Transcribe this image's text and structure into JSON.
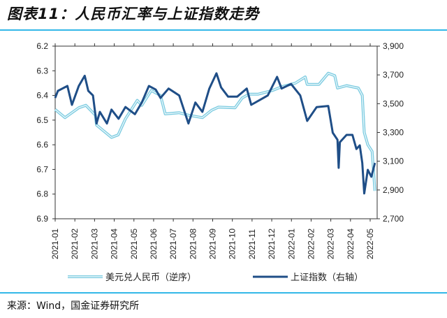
{
  "title": "图表11：人民币汇率与上证指数走势",
  "source": "来源：Wind，国金证券研究所",
  "colors": {
    "usdcny": "#7ccbe0",
    "sh_index": "#1f4e87",
    "rule": "#33b8e8"
  },
  "chart_data": {
    "type": "line",
    "title": "人民币汇率与上证指数走势",
    "x_unit": "months since 2021-01",
    "x_tick_labels": [
      "2021-01",
      "2021-02",
      "2021-03",
      "2021-04",
      "2021-05",
      "2021-06",
      "2021-07",
      "2021-08",
      "2021-09",
      "2021-10",
      "2021-11",
      "2021-12",
      "2022-01",
      "2022-02",
      "2022-03",
      "2022-04",
      "2022-05"
    ],
    "left_axis": {
      "ylim": [
        6.2,
        6.9
      ],
      "inverted": true,
      "ticks": [
        "6.2",
        "6.3",
        "6.4",
        "6.5",
        "6.6",
        "6.7",
        "6.8",
        "6.9"
      ]
    },
    "right_axis": {
      "ylim": [
        2700,
        3900
      ],
      "ticks": [
        "3,900",
        "3,700",
        "3,500",
        "3,300",
        "3,100",
        "2,900",
        "2,700"
      ]
    },
    "legend_position": "bottom",
    "series": [
      {
        "name": "美元兑人民币（逆序）",
        "axis": "left",
        "x": [
          0,
          0.5,
          1.2,
          1.56,
          2.04,
          2.1,
          2.86,
          3.2,
          3.57,
          4.17,
          4.4,
          4.88,
          5.35,
          5.59,
          6.3,
          6.77,
          7.48,
          7.95,
          8.3,
          9.14,
          9.5,
          9.85,
          10.3,
          11.03,
          11.5,
          12.2,
          12.7,
          12.8,
          13.4,
          13.87,
          14.2,
          14.34,
          14.8,
          15.4,
          15.6,
          15.7,
          15.88,
          16.1,
          16.24
        ],
        "y": [
          6.457,
          6.49,
          6.45,
          6.44,
          6.48,
          6.52,
          6.57,
          6.56,
          6.495,
          6.42,
          6.44,
          6.38,
          6.4,
          6.475,
          6.47,
          6.48,
          6.49,
          6.46,
          6.447,
          6.45,
          6.41,
          6.395,
          6.395,
          6.38,
          6.365,
          6.35,
          6.325,
          6.355,
          6.355,
          6.31,
          6.32,
          6.37,
          6.36,
          6.37,
          6.4,
          6.55,
          6.6,
          6.627,
          6.787
        ]
      },
      {
        "name": "上证指数（右轴）",
        "axis": "right",
        "x": [
          0,
          0.14,
          0.62,
          0.85,
          1.2,
          1.5,
          1.68,
          1.92,
          2.1,
          2.27,
          2.63,
          2.86,
          3.22,
          3.57,
          4.05,
          4.4,
          4.76,
          5.11,
          5.35,
          5.76,
          6.3,
          6.77,
          7.12,
          7.48,
          7.83,
          8.19,
          8.43,
          8.78,
          9.25,
          9.73,
          9.96,
          10.8,
          11.27,
          11.5,
          11.98,
          12.45,
          12.8,
          13.28,
          13.87,
          14.1,
          14.34,
          14.4,
          14.46,
          14.8,
          15.1,
          15.3,
          15.47,
          15.6,
          15.7,
          15.88,
          16.06,
          16.24
        ],
        "y": [
          3540,
          3589,
          3623,
          3492,
          3623,
          3694,
          3589,
          3557,
          3362,
          3443,
          3362,
          3459,
          3395,
          3477,
          3427,
          3508,
          3623,
          3598,
          3540,
          3605,
          3557,
          3362,
          3508,
          3443,
          3605,
          3711,
          3613,
          3549,
          3549,
          3605,
          3492,
          3557,
          3686,
          3605,
          3637,
          3557,
          3380,
          3476,
          3484,
          3298,
          3249,
          3054,
          3232,
          3283,
          3283,
          3185,
          3210,
          3088,
          2876,
          3040,
          2992,
          3088
        ]
      }
    ]
  }
}
